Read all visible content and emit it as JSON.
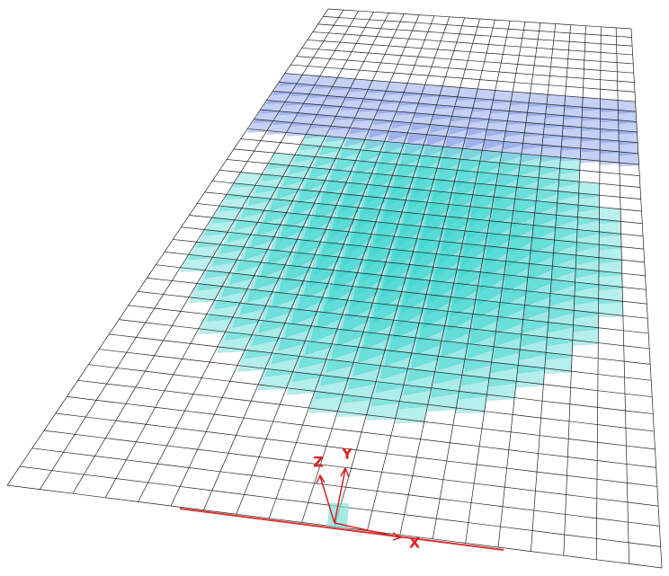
{
  "axes": {
    "x": "X",
    "y": "Y",
    "z": "Z"
  }
}
